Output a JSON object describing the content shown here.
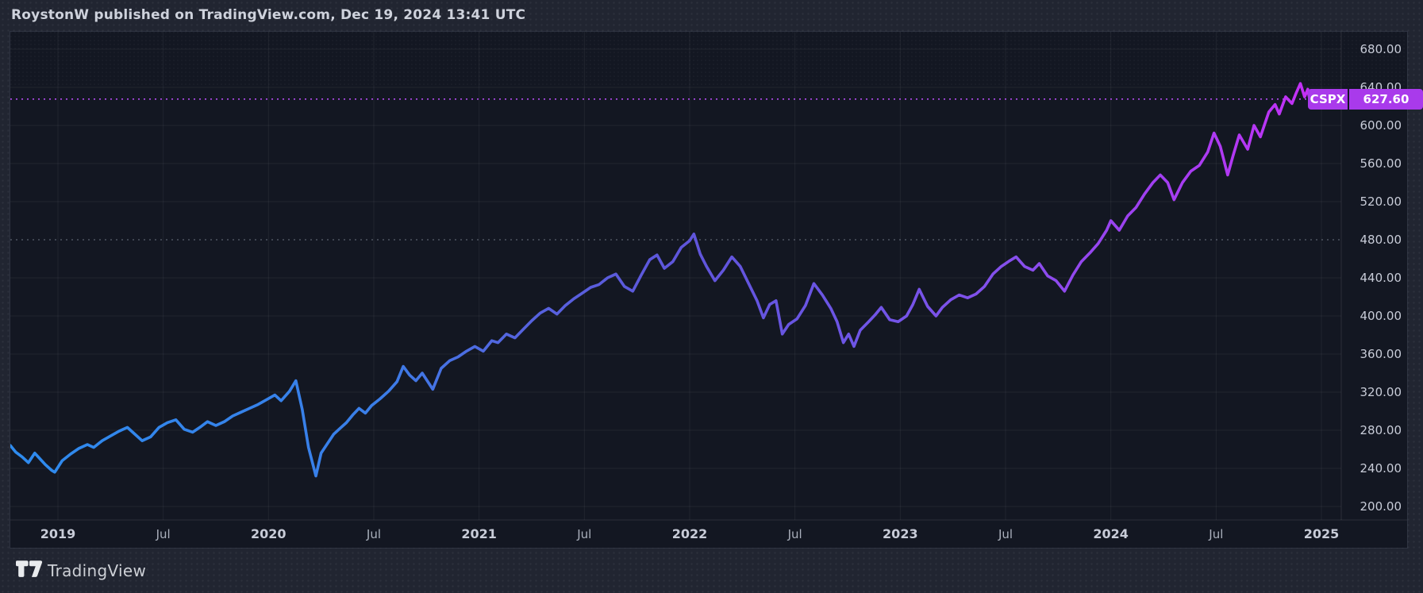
{
  "header": {
    "byline": "RoystonW published on TradingView.com, Dec 19, 2024 13:41 UTC"
  },
  "symbol_badge": {
    "ticker": "CSPX",
    "price": "627.60"
  },
  "footer": {
    "brand": "TradingView"
  },
  "colors": {
    "outer_bg": "#212531",
    "panel_bg": "#131722",
    "grid": "rgba(255,255,255,0.06)",
    "axis_separator": "rgba(255,255,255,0.10)",
    "tick_text": "#c8ccd8",
    "tick_text_minor": "#aab0bc",
    "header_text": "#ced2dc",
    "footer_text": "#cdd0d6",
    "badge_bg": "#A93AEB",
    "badge_divider": "#131722",
    "badge_text": "#ffffff",
    "last_price_line": "#B44CF2",
    "level_line": "rgba(165,172,190,0.42)",
    "dot_texture": "rgba(255,255,255,0.05)",
    "line_gradient": [
      [
        "0",
        "#2E8BEE"
      ],
      [
        "0.28",
        "#3A7EE8"
      ],
      [
        "0.39",
        "#5563DE"
      ],
      [
        "0.52",
        "#5F55DB"
      ],
      [
        "0.65",
        "#6E55E6"
      ],
      [
        "0.76",
        "#8450EC"
      ],
      [
        "0.88",
        "#A23FF1"
      ],
      [
        "0.96",
        "#B836F4"
      ],
      [
        "1",
        "#C62FF6"
      ]
    ]
  },
  "chart_data": {
    "type": "line",
    "symbol": "CSPX",
    "title": "CSPX weekly close, late 2018 through Dec 19 2024",
    "last_price": 627.6,
    "x_domain": [
      2018.774,
      2025.407
    ],
    "y_domain": [
      156.7,
      698.3
    ],
    "texture_band_to_price": 640,
    "grid_on": true,
    "y_ticks": [
      {
        "value": 680,
        "label": "680.00"
      },
      {
        "value": 640,
        "label": "640.00"
      },
      {
        "value": 600,
        "label": "600.00"
      },
      {
        "value": 560,
        "label": "560.00"
      },
      {
        "value": 520,
        "label": "520.00"
      },
      {
        "value": 480,
        "label": "480.00"
      },
      {
        "value": 440,
        "label": "440.00"
      },
      {
        "value": 400,
        "label": "400.00"
      },
      {
        "value": 360,
        "label": "360.00"
      },
      {
        "value": 320,
        "label": "320.00"
      },
      {
        "value": 280,
        "label": "280.00"
      },
      {
        "value": 240,
        "label": "240.00"
      },
      {
        "value": 200,
        "label": "200.00"
      }
    ],
    "h_gridlines": [
      680,
      640,
      600,
      560,
      520,
      440,
      400,
      360,
      320,
      280,
      240,
      200
    ],
    "x_ticks": [
      {
        "t": 2019.0,
        "label": "2019",
        "major": true
      },
      {
        "t": 2019.5,
        "label": "Jul",
        "major": false
      },
      {
        "t": 2020.0,
        "label": "2020",
        "major": true
      },
      {
        "t": 2020.5,
        "label": "Jul",
        "major": false
      },
      {
        "t": 2021.0,
        "label": "2021",
        "major": true
      },
      {
        "t": 2021.5,
        "label": "Jul",
        "major": false
      },
      {
        "t": 2022.0,
        "label": "2022",
        "major": true
      },
      {
        "t": 2022.5,
        "label": "Jul",
        "major": false
      },
      {
        "t": 2023.0,
        "label": "2023",
        "major": true
      },
      {
        "t": 2023.5,
        "label": "Jul",
        "major": false
      },
      {
        "t": 2024.0,
        "label": "2024",
        "major": true
      },
      {
        "t": 2024.5,
        "label": "Jul",
        "major": false
      },
      {
        "t": 2025.0,
        "label": "2025",
        "major": true
      }
    ],
    "level_lines": [
      {
        "price": 480.0,
        "style": "dotted",
        "role": "horizontal-level-line"
      },
      {
        "price": 627.6,
        "style": "dotted",
        "role": "last-price-line"
      }
    ],
    "points": [
      [
        2018.774,
        264
      ],
      [
        2018.8,
        257
      ],
      [
        2018.83,
        252
      ],
      [
        2018.86,
        246
      ],
      [
        2018.89,
        256
      ],
      [
        2018.915,
        250
      ],
      [
        2018.94,
        244
      ],
      [
        2018.97,
        238
      ],
      [
        2018.985,
        236
      ],
      [
        2019.02,
        248
      ],
      [
        2019.06,
        255
      ],
      [
        2019.1,
        261
      ],
      [
        2019.14,
        265
      ],
      [
        2019.17,
        262
      ],
      [
        2019.21,
        269
      ],
      [
        2019.25,
        274
      ],
      [
        2019.29,
        279
      ],
      [
        2019.33,
        283
      ],
      [
        2019.36,
        277
      ],
      [
        2019.4,
        269
      ],
      [
        2019.44,
        273
      ],
      [
        2019.48,
        283
      ],
      [
        2019.52,
        288
      ],
      [
        2019.56,
        291
      ],
      [
        2019.6,
        281
      ],
      [
        2019.64,
        278
      ],
      [
        2019.68,
        284
      ],
      [
        2019.71,
        289
      ],
      [
        2019.75,
        285
      ],
      [
        2019.79,
        289
      ],
      [
        2019.83,
        295
      ],
      [
        2019.87,
        299
      ],
      [
        2019.91,
        303
      ],
      [
        2019.95,
        307
      ],
      [
        2019.99,
        312
      ],
      [
        2020.03,
        317
      ],
      [
        2020.06,
        311
      ],
      [
        2020.1,
        321
      ],
      [
        2020.13,
        332
      ],
      [
        2020.16,
        302
      ],
      [
        2020.19,
        262
      ],
      [
        2020.225,
        232
      ],
      [
        2020.25,
        256
      ],
      [
        2020.28,
        266
      ],
      [
        2020.31,
        276
      ],
      [
        2020.34,
        282
      ],
      [
        2020.37,
        288
      ],
      [
        2020.4,
        296
      ],
      [
        2020.43,
        303
      ],
      [
        2020.46,
        298
      ],
      [
        2020.49,
        306
      ],
      [
        2020.53,
        313
      ],
      [
        2020.57,
        321
      ],
      [
        2020.61,
        331
      ],
      [
        2020.64,
        347
      ],
      [
        2020.67,
        338
      ],
      [
        2020.7,
        332
      ],
      [
        2020.73,
        340
      ],
      [
        2020.78,
        323
      ],
      [
        2020.82,
        345
      ],
      [
        2020.86,
        353
      ],
      [
        2020.9,
        357
      ],
      [
        2020.94,
        363
      ],
      [
        2020.98,
        368
      ],
      [
        2021.02,
        363
      ],
      [
        2021.06,
        374
      ],
      [
        2021.09,
        372
      ],
      [
        2021.13,
        381
      ],
      [
        2021.17,
        377
      ],
      [
        2021.21,
        386
      ],
      [
        2021.25,
        395
      ],
      [
        2021.29,
        403
      ],
      [
        2021.33,
        408
      ],
      [
        2021.37,
        402
      ],
      [
        2021.41,
        411
      ],
      [
        2021.45,
        418
      ],
      [
        2021.49,
        424
      ],
      [
        2021.53,
        430
      ],
      [
        2021.57,
        433
      ],
      [
        2021.61,
        440
      ],
      [
        2021.65,
        444
      ],
      [
        2021.69,
        431
      ],
      [
        2021.73,
        426
      ],
      [
        2021.77,
        443
      ],
      [
        2021.81,
        459
      ],
      [
        2021.845,
        464
      ],
      [
        2021.88,
        450
      ],
      [
        2021.92,
        457
      ],
      [
        2021.96,
        472
      ],
      [
        2022.0,
        479
      ],
      [
        2022.02,
        486
      ],
      [
        2022.05,
        465
      ],
      [
        2022.08,
        452
      ],
      [
        2022.12,
        437
      ],
      [
        2022.16,
        448
      ],
      [
        2022.2,
        462
      ],
      [
        2022.24,
        452
      ],
      [
        2022.28,
        434
      ],
      [
        2022.32,
        416
      ],
      [
        2022.35,
        398
      ],
      [
        2022.38,
        412
      ],
      [
        2022.41,
        416
      ],
      [
        2022.44,
        381
      ],
      [
        2022.47,
        391
      ],
      [
        2022.51,
        397
      ],
      [
        2022.55,
        411
      ],
      [
        2022.59,
        434
      ],
      [
        2022.63,
        422
      ],
      [
        2022.67,
        408
      ],
      [
        2022.7,
        394
      ],
      [
        2022.73,
        372
      ],
      [
        2022.755,
        381
      ],
      [
        2022.78,
        368
      ],
      [
        2022.81,
        385
      ],
      [
        2022.85,
        394
      ],
      [
        2022.88,
        401
      ],
      [
        2022.91,
        409
      ],
      [
        2022.95,
        396
      ],
      [
        2022.99,
        394
      ],
      [
        2023.03,
        400
      ],
      [
        2023.06,
        412
      ],
      [
        2023.09,
        428
      ],
      [
        2023.13,
        410
      ],
      [
        2023.17,
        400
      ],
      [
        2023.2,
        409
      ],
      [
        2023.24,
        417
      ],
      [
        2023.28,
        422
      ],
      [
        2023.32,
        419
      ],
      [
        2023.36,
        423
      ],
      [
        2023.4,
        431
      ],
      [
        2023.44,
        444
      ],
      [
        2023.48,
        452
      ],
      [
        2023.52,
        458
      ],
      [
        2023.55,
        462
      ],
      [
        2023.59,
        452
      ],
      [
        2023.63,
        448
      ],
      [
        2023.66,
        455
      ],
      [
        2023.7,
        442
      ],
      [
        2023.74,
        437
      ],
      [
        2023.78,
        426
      ],
      [
        2023.82,
        443
      ],
      [
        2023.86,
        457
      ],
      [
        2023.9,
        466
      ],
      [
        2023.94,
        476
      ],
      [
        2023.98,
        490
      ],
      [
        2024.0,
        500
      ],
      [
        2024.04,
        490
      ],
      [
        2024.08,
        505
      ],
      [
        2024.12,
        514
      ],
      [
        2024.16,
        528
      ],
      [
        2024.2,
        540
      ],
      [
        2024.235,
        548
      ],
      [
        2024.27,
        540
      ],
      [
        2024.3,
        522
      ],
      [
        2024.34,
        540
      ],
      [
        2024.38,
        552
      ],
      [
        2024.42,
        558
      ],
      [
        2024.46,
        572
      ],
      [
        2024.49,
        592
      ],
      [
        2024.52,
        578
      ],
      [
        2024.555,
        548
      ],
      [
        2024.58,
        568
      ],
      [
        2024.61,
        590
      ],
      [
        2024.65,
        575
      ],
      [
        2024.68,
        600
      ],
      [
        2024.71,
        588
      ],
      [
        2024.75,
        614
      ],
      [
        2024.78,
        622
      ],
      [
        2024.8,
        612
      ],
      [
        2024.83,
        630
      ],
      [
        2024.86,
        623
      ],
      [
        2024.88,
        634
      ],
      [
        2024.9,
        644
      ],
      [
        2024.92,
        630
      ],
      [
        2024.935,
        638
      ],
      [
        2024.95,
        620
      ],
      [
        2024.965,
        627.6
      ]
    ]
  }
}
